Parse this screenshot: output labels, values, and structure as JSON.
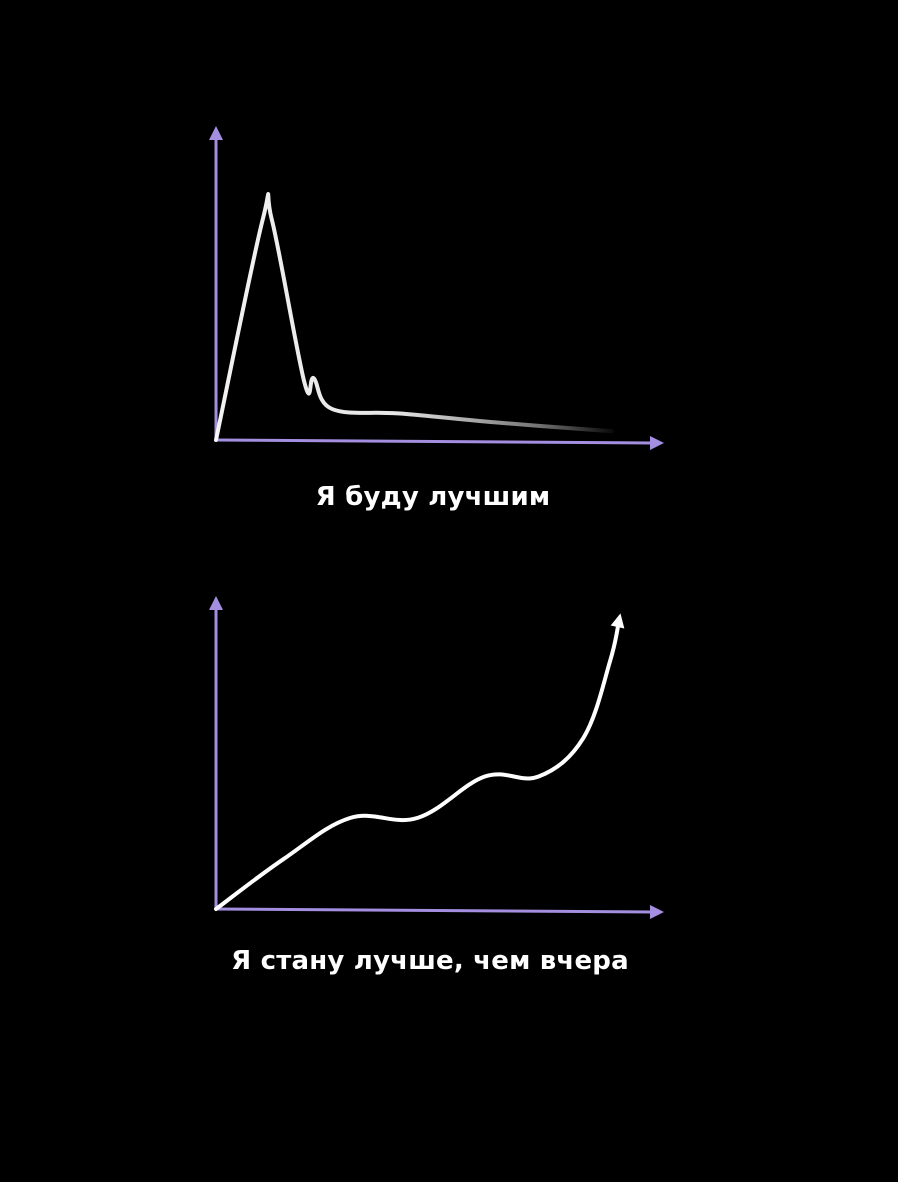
{
  "colors": {
    "background": "#000000",
    "axis": "#a48ee0",
    "line": "#ffffff"
  },
  "chart_data": [
    {
      "type": "line",
      "title": "",
      "caption": "Я буду лучшим",
      "xlabel": "",
      "ylabel": "",
      "grid": false,
      "axes_have_ticks": false,
      "series": [
        {
          "x": [
            0,
            0.1,
            0.12,
            0.19,
            0.21,
            0.25,
            0.4,
            0.6,
            0.85
          ],
          "y": [
            0,
            1.0,
            1.0,
            0.26,
            0.28,
            0.14,
            0.12,
            0.08,
            0.04
          ],
          "fades_out": true
        }
      ]
    },
    {
      "type": "line",
      "title": "",
      "caption": "Я стану лучше, чем вчера",
      "xlabel": "",
      "ylabel": "",
      "grid": false,
      "axes_have_ticks": false,
      "series": [
        {
          "x": [
            0,
            0.15,
            0.3,
            0.45,
            0.6,
            0.72,
            0.82,
            0.88,
            0.9
          ],
          "y": [
            0,
            0.18,
            0.33,
            0.33,
            0.48,
            0.48,
            0.62,
            0.9,
            1.05
          ],
          "ends_with_arrow": true
        }
      ]
    }
  ]
}
